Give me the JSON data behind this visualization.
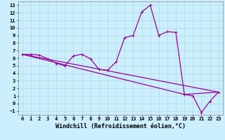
{
  "title": "",
  "xlabel": "Windchill (Refroidissement éolien,°C)",
  "ylabel": "",
  "bg_color": "#cceeff",
  "line_color": "#990099",
  "grid_color": "#aadddd",
  "xlim": [
    -0.5,
    23.5
  ],
  "ylim": [
    -1.5,
    13.5
  ],
  "xticks": [
    0,
    1,
    2,
    3,
    4,
    5,
    6,
    7,
    8,
    9,
    10,
    11,
    12,
    13,
    14,
    15,
    16,
    17,
    18,
    19,
    20,
    21,
    22,
    23
  ],
  "yticks": [
    -1,
    0,
    1,
    2,
    3,
    4,
    5,
    6,
    7,
    8,
    9,
    10,
    11,
    12,
    13
  ],
  "main_x": [
    0,
    1,
    2,
    3,
    4,
    5,
    6,
    7,
    8,
    9,
    10,
    11,
    12,
    13,
    14,
    15,
    16,
    17,
    18,
    19,
    20,
    21,
    22,
    23
  ],
  "main_y": [
    6.5,
    6.5,
    6.4,
    5.9,
    5.3,
    5.0,
    6.3,
    6.5,
    5.9,
    4.5,
    4.4,
    5.5,
    8.7,
    9.0,
    12.1,
    13.0,
    9.0,
    9.5,
    9.4,
    1.2,
    1.0,
    -1.2,
    0.3,
    1.5
  ],
  "line2_x": [
    0,
    23
  ],
  "line2_y": [
    6.5,
    1.5
  ],
  "line3_x": [
    0,
    19,
    23
  ],
  "line3_y": [
    6.5,
    1.2,
    1.5
  ],
  "marker_size": 2.5,
  "linewidth": 0.9,
  "tick_fontsize": 5.0,
  "label_fontsize": 6.0
}
